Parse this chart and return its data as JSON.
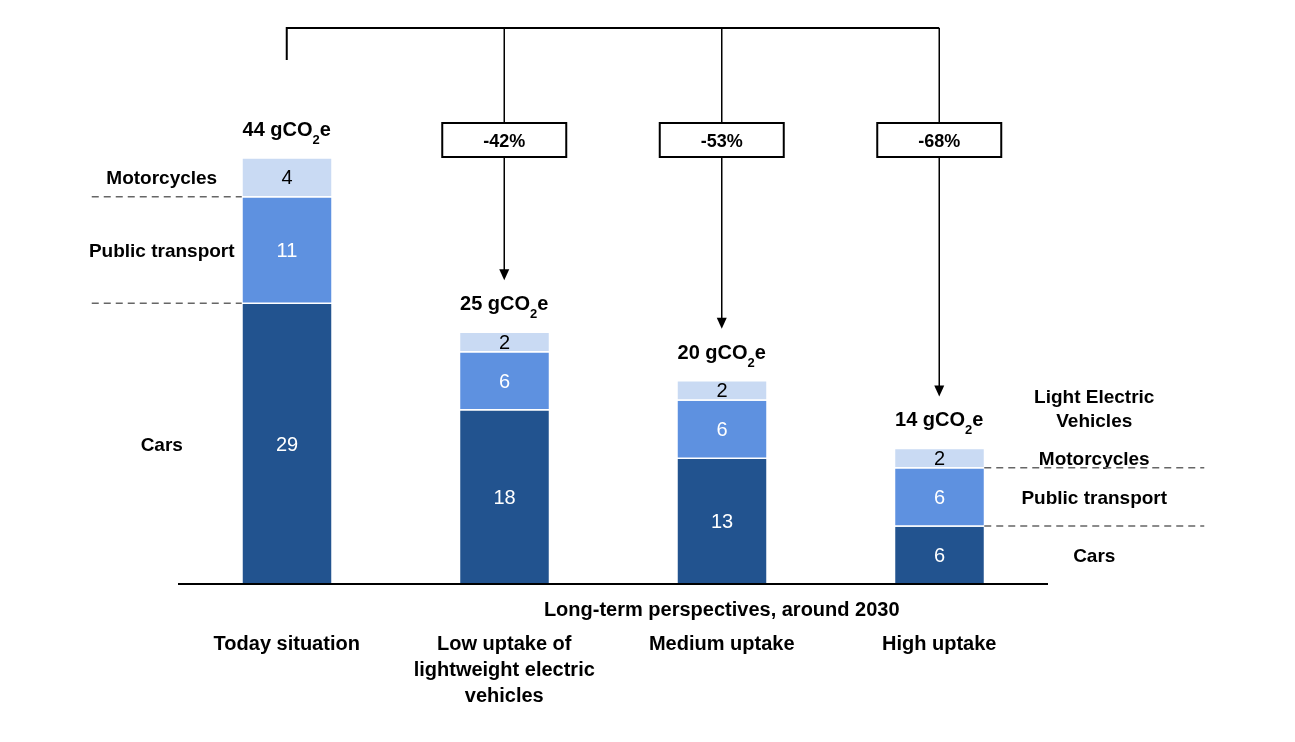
{
  "chart_data": {
    "type": "bar",
    "stacked": true,
    "data_labels": true,
    "categories": [
      "Today situation",
      "Low uptake of lightweight electric vehicles",
      "Medium uptake",
      "High uptake"
    ],
    "series": [
      {
        "name": "Cars",
        "color": "#22538f",
        "values": [
          29,
          18,
          13,
          6
        ]
      },
      {
        "name": "Public transport",
        "color": "#5e91e0",
        "values": [
          11,
          6,
          6,
          6
        ]
      },
      {
        "name": "Motorcycles",
        "color": "#c9daf3",
        "values": [
          4,
          2,
          2,
          2
        ]
      }
    ],
    "totals": [
      "44 gCO$_{2}$e",
      "25 gCO$_{2}$e",
      "20 gCO$_{2}$e",
      "14 gCO$_{2}$e"
    ],
    "annotations": [
      "-42%",
      "-53%",
      "-68%",
      "Light Electric Vehicles",
      "Long-term perspectives, around 2030"
    ]
  }
}
